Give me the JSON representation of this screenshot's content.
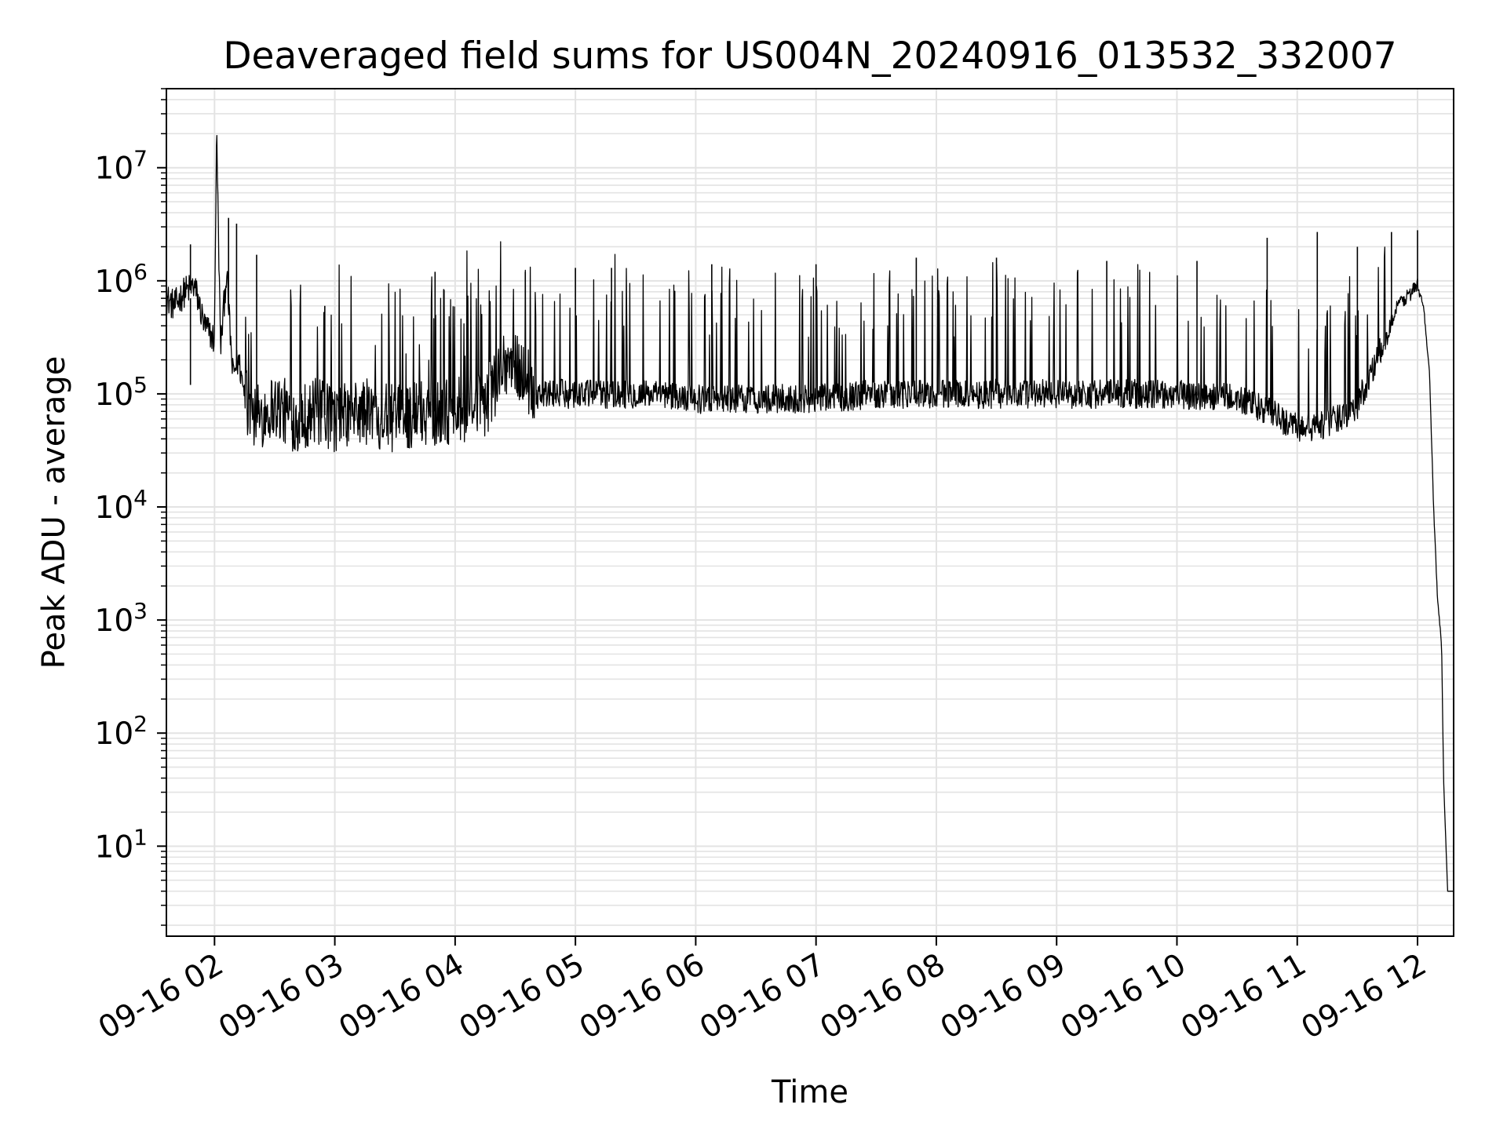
{
  "chart_data": {
    "type": "line",
    "title": "Deaveraged field sums for US004N_20240916_013532_332007",
    "xlabel": "Time",
    "ylabel": "Peak ADU - average",
    "y_scale": "log",
    "ylim": [
      1.6,
      50000000
    ],
    "xlim": [
      "2024-09-16 01:36",
      "2024-09-16 12:18"
    ],
    "x_tick_labels": [
      "09-16 02",
      "09-16 03",
      "09-16 04",
      "09-16 05",
      "09-16 06",
      "09-16 07",
      "09-16 08",
      "09-16 09",
      "09-16 10",
      "09-16 11",
      "09-16 12"
    ],
    "x_ticks": [
      "2024-09-16 02:00",
      "2024-09-16 03:00",
      "2024-09-16 04:00",
      "2024-09-16 05:00",
      "2024-09-16 06:00",
      "2024-09-16 07:00",
      "2024-09-16 08:00",
      "2024-09-16 09:00",
      "2024-09-16 10:00",
      "2024-09-16 11:00",
      "2024-09-16 12:00"
    ],
    "y_ticks": [
      {
        "value": 10,
        "base": "10",
        "exp": "1"
      },
      {
        "value": 100,
        "base": "10",
        "exp": "2"
      },
      {
        "value": 1000,
        "base": "10",
        "exp": "3"
      },
      {
        "value": 10000,
        "base": "10",
        "exp": "4"
      },
      {
        "value": 100000,
        "base": "10",
        "exp": "5"
      },
      {
        "value": 1000000,
        "base": "10",
        "exp": "6"
      },
      {
        "value": 10000000,
        "base": "10",
        "exp": "7"
      }
    ],
    "grid": true,
    "series": [
      {
        "color": "#000000",
        "x": [
          "2024-09-16 01:36",
          "2024-09-16 01:40",
          "2024-09-16 01:45",
          "2024-09-16 01:50",
          "2024-09-16 01:55",
          "2024-09-16 02:00",
          "2024-09-16 02:01",
          "2024-09-16 02:03",
          "2024-09-16 02:06",
          "2024-09-16 02:09",
          "2024-09-16 02:12",
          "2024-09-16 02:15",
          "2024-09-16 02:20",
          "2024-09-16 02:30",
          "2024-09-16 02:40",
          "2024-09-16 02:50",
          "2024-09-16 03:00",
          "2024-09-16 03:15",
          "2024-09-16 03:30",
          "2024-09-16 03:45",
          "2024-09-16 04:00",
          "2024-09-16 04:15",
          "2024-09-16 04:25",
          "2024-09-16 04:35",
          "2024-09-16 04:40",
          "2024-09-16 05:00",
          "2024-09-16 05:30",
          "2024-09-16 06:00",
          "2024-09-16 06:30",
          "2024-09-16 07:00",
          "2024-09-16 07:30",
          "2024-09-16 08:00",
          "2024-09-16 08:30",
          "2024-09-16 09:00",
          "2024-09-16 09:30",
          "2024-09-16 10:00",
          "2024-09-16 10:30",
          "2024-09-16 10:45",
          "2024-09-16 11:00",
          "2024-09-16 11:10",
          "2024-09-16 11:20",
          "2024-09-16 11:30",
          "2024-09-16 11:40",
          "2024-09-16 11:50",
          "2024-09-16 12:00",
          "2024-09-16 12:03",
          "2024-09-16 12:06",
          "2024-09-16 12:08",
          "2024-09-16 12:10",
          "2024-09-16 12:12",
          "2024-09-16 12:13",
          "2024-09-16 12:15",
          "2024-09-16 12:17",
          "2024-09-16 12:18"
        ],
        "y": [
          700000,
          600000,
          800000,
          900000,
          400000,
          300000,
          23000000,
          250000,
          1200000,
          150000,
          200000,
          100000,
          60000,
          80000,
          60000,
          70000,
          60000,
          70000,
          60000,
          70000,
          70000,
          80000,
          200000,
          150000,
          100000,
          100000,
          100000,
          90000,
          90000,
          90000,
          100000,
          100000,
          100000,
          100000,
          100000,
          100000,
          90000,
          70000,
          50000,
          50000,
          60000,
          80000,
          200000,
          600000,
          900000,
          600000,
          150000,
          10000,
          1500,
          600,
          40,
          4,
          4,
          4
        ]
      }
    ],
    "spikes": [
      {
        "x": "2024-09-16 01:48",
        "y": 2100000
      },
      {
        "x": "2024-09-16 01:48",
        "y": 120000,
        "down": true
      },
      {
        "x": "2024-09-16 02:01",
        "y": 23000000
      },
      {
        "x": "2024-09-16 02:07",
        "y": 3600000
      },
      {
        "x": "2024-09-16 02:11",
        "y": 3200000
      },
      {
        "x": "2024-09-16 02:21",
        "y": 1700000
      },
      {
        "x": "2024-09-16 02:55",
        "y": 600000
      },
      {
        "x": "2024-09-16 03:50",
        "y": 1200000
      },
      {
        "x": "2024-09-16 04:35",
        "y": 1200000
      },
      {
        "x": "2024-09-16 05:00",
        "y": 1300000
      },
      {
        "x": "2024-09-16 05:18",
        "y": 1300000
      },
      {
        "x": "2024-09-16 06:08",
        "y": 1400000
      },
      {
        "x": "2024-09-16 07:00",
        "y": 1400000
      },
      {
        "x": "2024-09-16 07:50",
        "y": 1600000
      },
      {
        "x": "2024-09-16 08:30",
        "y": 1600000
      },
      {
        "x": "2024-09-16 09:25",
        "y": 1500000
      },
      {
        "x": "2024-09-16 10:10",
        "y": 1500000
      },
      {
        "x": "2024-09-16 10:45",
        "y": 2400000
      },
      {
        "x": "2024-09-16 11:10",
        "y": 2700000
      },
      {
        "x": "2024-09-16 11:30",
        "y": 2000000
      },
      {
        "x": "2024-09-16 11:47",
        "y": 2700000
      },
      {
        "x": "2024-09-16 12:00",
        "y": 2800000
      }
    ]
  }
}
